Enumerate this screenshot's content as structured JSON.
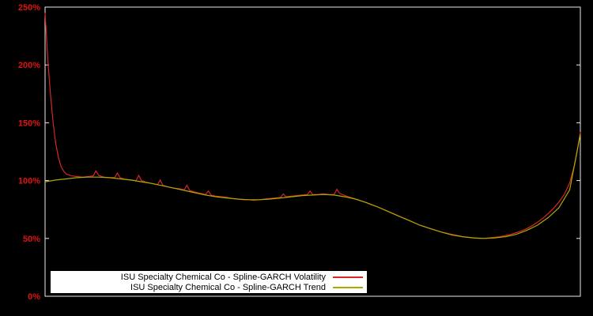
{
  "figure": {
    "background_color": "#000000",
    "frame_color": "#eaeaea"
  },
  "chart_data": {
    "type": "line",
    "title": "",
    "xlabel": "",
    "ylabel": "",
    "grid": false,
    "legend_position": "bottom-left",
    "xlim": [
      0,
      100
    ],
    "ylim": [
      0,
      250
    ],
    "yticks": [
      0,
      50,
      100,
      150,
      200,
      250
    ],
    "ytick_labels": [
      "0%",
      "50%",
      "100%",
      "150%",
      "200%",
      "250%"
    ],
    "tick_label_color": "#e01212",
    "series": [
      {
        "name": "ISU Specialty Chemical Co - Spline-GARCH Volatility",
        "color": "#d92626",
        "x": [
          0,
          0.5,
          1,
          1.5,
          2,
          2.5,
          3,
          3.5,
          4,
          5,
          6,
          7,
          8,
          9,
          9.5,
          10,
          11,
          12,
          13,
          13.5,
          14,
          15,
          16,
          17,
          17.5,
          18,
          19,
          20,
          21,
          21.5,
          22,
          23,
          24,
          25,
          26,
          26.5,
          27,
          28,
          29,
          30,
          30.5,
          31,
          32,
          33,
          34,
          35,
          36,
          37,
          38,
          39,
          40,
          41,
          42,
          43,
          44,
          44.5,
          45,
          46,
          47,
          48,
          49,
          49.5,
          50,
          51,
          52,
          53,
          54,
          54.5,
          55,
          56,
          57,
          58,
          59,
          60,
          61,
          62,
          63,
          64,
          65,
          66,
          67,
          68,
          69,
          70,
          71,
          72,
          73,
          74,
          75,
          76,
          77,
          78,
          79,
          80,
          81,
          82,
          83,
          84,
          85,
          86,
          87,
          88,
          89,
          90,
          91,
          92,
          93,
          94,
          95,
          96,
          97,
          98,
          99,
          100
        ],
        "values": [
          245,
          205,
          175,
          150,
          132,
          120,
          112,
          108,
          105.5,
          104,
          103.5,
          103,
          103.5,
          104,
          108.5,
          104.5,
          103,
          102.5,
          102.5,
          106.5,
          102.5,
          101,
          100.5,
          100,
          104.5,
          100,
          98.5,
          97.5,
          96.5,
          100.5,
          96,
          94.5,
          93.5,
          93,
          92,
          96,
          91.5,
          90,
          89,
          88,
          91,
          87.5,
          86.5,
          86,
          85.5,
          84.5,
          84,
          83.5,
          83.5,
          83,
          83.5,
          84,
          84.5,
          85,
          85.5,
          88.5,
          86,
          86.5,
          87,
          87.5,
          88,
          91,
          88,
          88,
          88.5,
          88,
          88,
          92.5,
          89,
          87,
          85.5,
          84,
          82.5,
          81,
          79,
          77.5,
          75.5,
          73.5,
          71.5,
          69.5,
          67.5,
          65.5,
          63.5,
          61.5,
          60,
          58.5,
          57,
          55.5,
          54.5,
          53.5,
          52.5,
          51.5,
          51,
          50.5,
          50,
          50,
          50.5,
          51,
          51.5,
          52.5,
          53.5,
          55,
          56.5,
          58.5,
          61,
          64,
          67.5,
          71.5,
          76,
          81.5,
          88,
          98,
          115,
          142
        ]
      },
      {
        "name": "ISU Specialty Chemical Co - Spline-GARCH Trend",
        "color": "#b0a800",
        "x": [
          0,
          2,
          4,
          6,
          8,
          10,
          12,
          14,
          16,
          18,
          20,
          22,
          24,
          26,
          28,
          30,
          32,
          34,
          36,
          38,
          40,
          42,
          44,
          46,
          48,
          50,
          52,
          54,
          56,
          58,
          60,
          62,
          64,
          66,
          68,
          70,
          72,
          74,
          76,
          78,
          80,
          82,
          84,
          86,
          88,
          90,
          92,
          94,
          96,
          98,
          100
        ],
        "values": [
          99,
          100.5,
          101.5,
          102.5,
          103,
          103,
          102.5,
          101.5,
          100.5,
          99,
          97.5,
          95.5,
          93.5,
          91.5,
          89.5,
          87.5,
          86,
          85,
          84,
          83.5,
          83.5,
          84,
          85,
          86,
          87,
          87.5,
          88,
          87.5,
          86,
          84,
          81,
          77.5,
          73.5,
          69.5,
          65.5,
          61.5,
          58.5,
          55.5,
          53,
          51.5,
          50.5,
          50,
          50.5,
          51.5,
          53.5,
          57,
          61.5,
          68,
          76.5,
          92,
          140
        ]
      }
    ]
  }
}
